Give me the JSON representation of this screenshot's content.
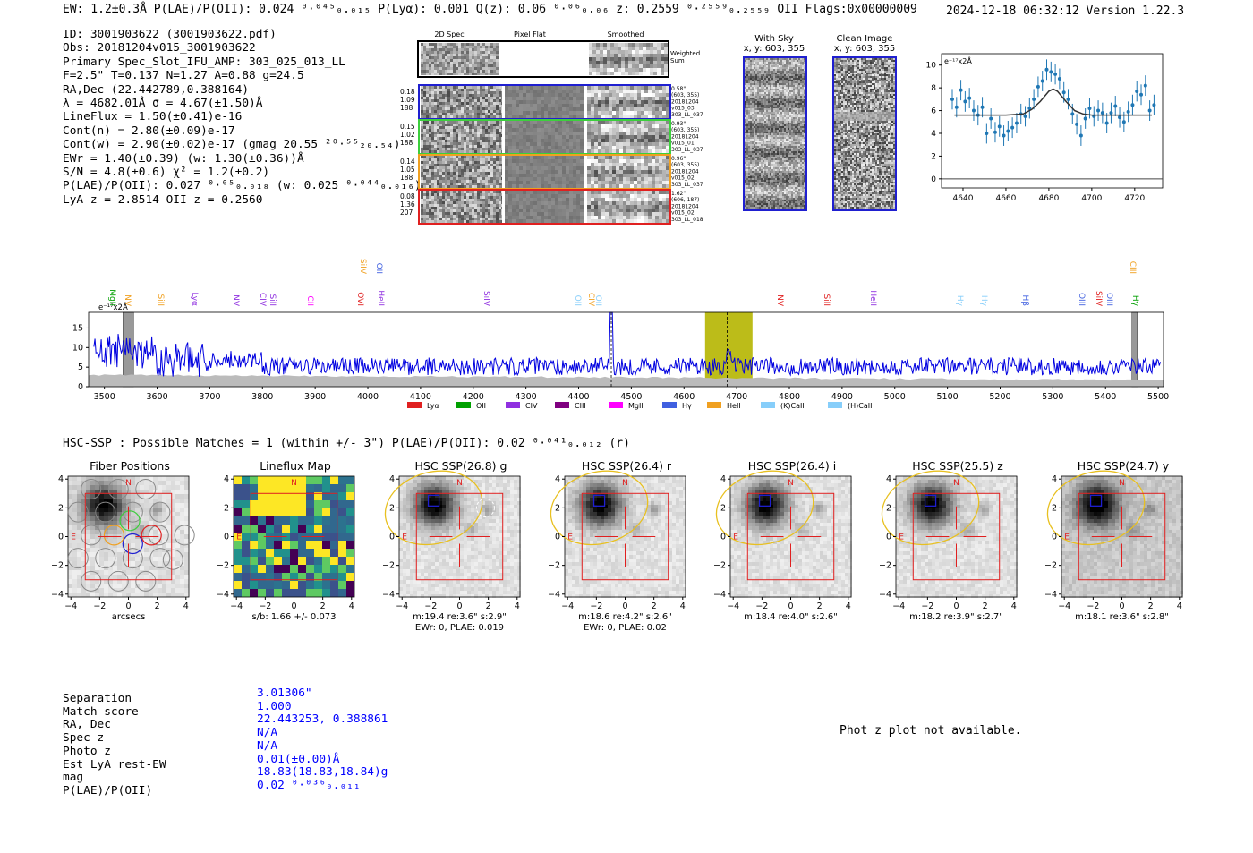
{
  "header": {
    "left": "EW: 1.2±0.3Å  P(LAE)/P(OII): 0.024 ⁰·⁰⁴⁵₀.₀₁₅  P(Lyα): 0.001  Q(z): 0.06 ⁰·⁰⁶₀.₀₆  z: 0.2559 ⁰·²⁵⁵⁹₀.₂₅₅₉ OII   Flags:0x00000009",
    "right": "2024-12-18 06:32:12  Version 1.22.3"
  },
  "info": {
    "lines": [
      "ID: 3001903622 (3001903622.pdf)",
      "Obs: 20181204v015_3001903622",
      "Primary Spec_Slot_IFU_AMP: 303_025_013_LL",
      "F=2.5\"  T=0.137  N=1.27  A=0.88  g=24.5",
      "RA,Dec (22.442789,0.388164)",
      "λ = 4682.01Å  σ = 4.67(±1.50)Å",
      "LineFlux = 1.50(±0.41)e-16",
      "Cont(n) = 2.80(±0.09)e-17",
      "Cont(w) = 2.90(±0.02)e-17 (gmag 20.55 ²⁰·⁵⁵₂₀.₅₄)",
      "EWr = 1.40(±0.39) (w: 1.30(±0.36))Å",
      "S/N = 4.8(±0.6)  χ² = 1.2(±0.2)",
      "P(LAE)/P(OII): 0.027 ⁰·⁰⁵₀.₀₁₈ (w: 0.025 ⁰·⁰⁴⁴₀.₀₁₆)",
      "LyA z = 2.8514  OII z = 0.2560"
    ]
  },
  "cutouts": {
    "col_labels": [
      "2D Spec",
      "Pixel Flat",
      "Smoothed"
    ],
    "weighted_label": "Weighted Sum",
    "rows": [
      {
        "left": [
          "0.18",
          "1.09",
          "188"
        ],
        "right": [
          "0.58\"",
          "(603, 355)",
          "20181204",
          "v015_03",
          "303_LL_037"
        ],
        "color": "#1f1fd0"
      },
      {
        "left": [
          "0.15",
          "1.02",
          "188"
        ],
        "right": [
          "0.93\"",
          "(603, 355)",
          "20181204",
          "v015_01",
          "303_LL_037"
        ],
        "color": "#3ccf3c"
      },
      {
        "left": [
          "0.14",
          "1.05",
          "188"
        ],
        "right": [
          "0.96\"",
          "(603, 355)",
          "20181204",
          "v015_02",
          "303_LL_037"
        ],
        "color": "#f0a020"
      },
      {
        "left": [
          "0.08",
          "1.36",
          "207"
        ],
        "right": [
          "1.62\"",
          "(606, 187)",
          "20181204",
          "v015_02",
          "303_LL_018"
        ],
        "color": "#e02020"
      }
    ],
    "sky_title": "With Sky",
    "sky_coords": "x, y: 603, 355",
    "clean_title": "Clean Image",
    "clean_coords": "x, y: 603, 355"
  },
  "fit_plot": {
    "unit_label": "e⁻¹⁷x2Å",
    "x_ticks": [
      "4640",
      "4660",
      "4680",
      "4700",
      "4720"
    ],
    "y_ticks": [
      "0",
      "2",
      "4",
      "6",
      "8",
      "10"
    ]
  },
  "spectrum": {
    "unit_label": "e⁻¹⁷x2Å",
    "x_ticks": [
      "3500",
      "3600",
      "3700",
      "3800",
      "3900",
      "4000",
      "4100",
      "4200",
      "4300",
      "4400",
      "4500",
      "4600",
      "4700",
      "4800",
      "4900",
      "5000",
      "5100",
      "5200",
      "5300",
      "5400",
      "5500"
    ],
    "y_ticks": [
      "0",
      "5",
      "10",
      "15"
    ],
    "line_labels": [
      {
        "t": "MgII",
        "c": "#00a000",
        "x": 120,
        "row": 1
      },
      {
        "t": "NV",
        "c": "#f0a020",
        "x": 137,
        "row": 1
      },
      {
        "t": "SiII",
        "c": "#f0a020",
        "x": 174,
        "row": 1
      },
      {
        "t": "Lyα",
        "c": "#9030e0",
        "x": 212,
        "row": 1
      },
      {
        "t": "NV",
        "c": "#9030e0",
        "x": 258,
        "row": 1
      },
      {
        "t": "CIV",
        "c": "#9030e0",
        "x": 288,
        "row": 1
      },
      {
        "t": "SiII",
        "c": "#9030e0",
        "x": 299,
        "row": 1
      },
      {
        "t": "CII",
        "c": "#ff00ff",
        "x": 341,
        "row": 1
      },
      {
        "t": "OVI",
        "c": "#e02020",
        "x": 397,
        "row": 1
      },
      {
        "t": "HeII",
        "c": "#9030e0",
        "x": 420,
        "row": 1
      },
      {
        "t": "SiIV",
        "c": "#f0a020",
        "x": 400,
        "row": 0
      },
      {
        "t": "OII",
        "c": "#4060e0",
        "x": 418,
        "row": 0
      },
      {
        "t": "SiIV",
        "c": "#9030e0",
        "x": 538,
        "row": 1
      },
      {
        "t": "OII",
        "c": "#87cefa",
        "x": 640,
        "row": 1
      },
      {
        "t": "CIV",
        "c": "#f0a020",
        "x": 655,
        "row": 1
      },
      {
        "t": "OII",
        "c": "#87cefa",
        "x": 663,
        "row": 1
      },
      {
        "t": "NV",
        "c": "#e02020",
        "x": 866,
        "row": 1
      },
      {
        "t": "SiII",
        "c": "#e02020",
        "x": 918,
        "row": 1
      },
      {
        "t": "HeII",
        "c": "#9030e0",
        "x": 970,
        "row": 1
      },
      {
        "t": "Hγ",
        "c": "#87cefa",
        "x": 1067,
        "row": 1
      },
      {
        "t": "Hγ",
        "c": "#87cefa",
        "x": 1094,
        "row": 1
      },
      {
        "t": "Hβ",
        "c": "#4060e0",
        "x": 1140,
        "row": 1
      },
      {
        "t": "OIII",
        "c": "#4060e0",
        "x": 1203,
        "row": 1
      },
      {
        "t": "SiIV",
        "c": "#e02020",
        "x": 1222,
        "row": 1
      },
      {
        "t": "OIII",
        "c": "#4060e0",
        "x": 1234,
        "row": 1
      },
      {
        "t": "CIII",
        "c": "#f0a020",
        "x": 1260,
        "row": 0
      },
      {
        "t": "Hγ",
        "c": "#00a000",
        "x": 1263,
        "row": 1
      }
    ],
    "legend": [
      {
        "t": "Lyα",
        "c": "#e02020"
      },
      {
        "t": "OII",
        "c": "#00a000"
      },
      {
        "t": "CIV",
        "c": "#9030e0"
      },
      {
        "t": "CIII",
        "c": "#800080"
      },
      {
        "t": "MgII",
        "c": "#ff00ff"
      },
      {
        "t": "Hγ",
        "c": "#4060e0"
      },
      {
        "t": "HeII",
        "c": "#f0a020"
      },
      {
        "t": "(K)CaII",
        "c": "#87cefa"
      },
      {
        "t": "(H)CaII",
        "c": "#87cefa"
      }
    ]
  },
  "hsc": {
    "heading": "HSC-SSP : Possible Matches = 1 (within +/- 3\")  P(LAE)/P(OII): 0.02 ⁰·⁰⁴¹₀.₀₁₂ (r)",
    "panels": [
      {
        "title": "Fiber Positions",
        "sub1": "arcsecs",
        "sub2": ""
      },
      {
        "title": "Lineflux Map",
        "sub1": "s/b: 1.66 +/- 0.073",
        "sub2": ""
      },
      {
        "title": "HSC SSP(26.8) g",
        "sub1": "m:19.4  re:3.6\"  s:2.9\"",
        "sub2": "EWr: 0, PLAE: 0.019"
      },
      {
        "title": "HSC SSP(26.4) r",
        "sub1": "m:18.6  re:4.2\"  s:2.6\"",
        "sub2": "EWr: 0, PLAE: 0.02"
      },
      {
        "title": "HSC SSP(26.4) i",
        "sub1": "m:18.4  re:4.0\"  s:2.6\"",
        "sub2": ""
      },
      {
        "title": "HSC SSP(25.5) z",
        "sub1": "m:18.2  re:3.9\"  s:2.7\"",
        "sub2": ""
      },
      {
        "title": "HSC SSP(24.7) y",
        "sub1": "m:18.1  re:3.6\"  s:2.8\"",
        "sub2": ""
      }
    ],
    "axis_ticks": [
      "−4",
      "−2",
      "0",
      "2",
      "4"
    ],
    "n_label": "N",
    "e_label": "E"
  },
  "table": {
    "labels": [
      "Separation",
      "Match score",
      "RA, Dec",
      "Spec z",
      "Photo z",
      "Est LyA rest-EW",
      "mag",
      "P(LAE)/P(OII)"
    ],
    "values": [
      "3.01306\"",
      "1.000",
      "22.443253, 0.388861",
      "N/A",
      "N/A",
      "0.01(±0.00)Å",
      "18.83(18.83,18.84)g",
      "0.02 ⁰·⁰³⁶₀.₀₁₁"
    ]
  },
  "photz_note": "Phot z plot not available.",
  "chart_data": [
    {
      "type": "scatter",
      "title": "",
      "xlabel": "",
      "ylabel": "e⁻¹⁷x2Å",
      "xlim": [
        4630,
        4733
      ],
      "ylim": [
        -0.8,
        11
      ],
      "series": [
        {
          "name": "",
          "x": [
            4635,
            4637,
            4639,
            4641,
            4643,
            4645,
            4647,
            4649,
            4651,
            4653,
            4655,
            4657,
            4659,
            4661,
            4663,
            4665,
            4667,
            4669,
            4671,
            4673,
            4675,
            4677,
            4679,
            4681,
            4683,
            4685,
            4687,
            4689,
            4691,
            4693,
            4695,
            4697,
            4699,
            4701,
            4703,
            4705,
            4707,
            4709,
            4711,
            4713,
            4715,
            4717,
            4719,
            4721,
            4723,
            4725,
            4727,
            4729
          ],
          "y": [
            7.0,
            6.3,
            7.8,
            6.8,
            7.1,
            6.0,
            5.6,
            6.3,
            4.0,
            5.3,
            4.1,
            4.6,
            3.8,
            4.2,
            4.5,
            4.9,
            5.7,
            5.5,
            6.2,
            7.0,
            8.1,
            8.6,
            9.6,
            9.4,
            9.2,
            8.8,
            7.6,
            7.0,
            5.7,
            4.8,
            3.8,
            5.3,
            6.2,
            5.5,
            6.0,
            5.8,
            4.9,
            5.8,
            6.4,
            5.4,
            5.0,
            5.9,
            6.5,
            7.7,
            7.4,
            8.2,
            6.0,
            6.5
          ]
        },
        {
          "name": "",
          "x": [
            4636,
            4660,
            4668,
            4672,
            4676,
            4680,
            4682,
            4684,
            4688,
            4692,
            4696,
            4700,
            4728
          ],
          "y": [
            5.6,
            5.6,
            5.7,
            6.1,
            6.8,
            7.7,
            7.9,
            7.7,
            6.8,
            6.0,
            5.7,
            5.6,
            5.6
          ]
        }
      ]
    },
    {
      "type": "line",
      "title": "",
      "xlabel": "",
      "ylabel": "e⁻¹⁷x2Å",
      "xlim": [
        3470,
        5510
      ],
      "ylim": [
        0,
        19
      ],
      "highlight_range": [
        4640,
        4730
      ],
      "marker_x": [
        4682,
        4462
      ]
    }
  ]
}
